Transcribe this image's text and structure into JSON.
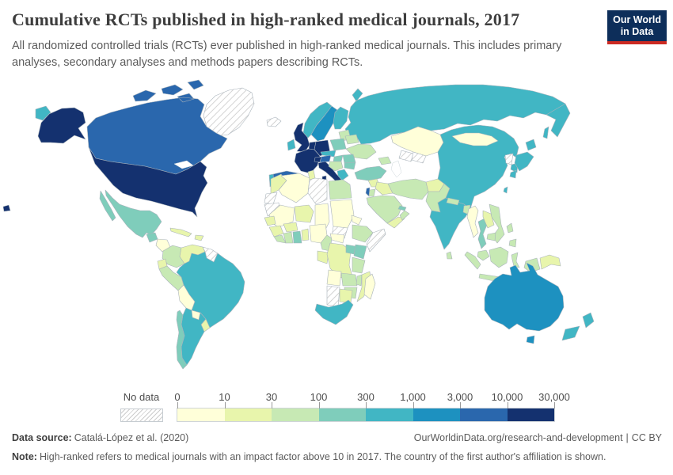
{
  "header": {
    "title": "Cumulative RCTs published in high-ranked medical journals, 2017",
    "subtitle": "All randomized controlled trials (RCTs) ever published in high-ranked medical journals. This includes primary analyses, secondary analyses and methods papers describing RCTs."
  },
  "logo": {
    "line1": "Our World",
    "line2": "in Data",
    "bg_color": "#0d2e5a",
    "red_color": "#cc2a22"
  },
  "legend": {
    "no_data_label": "No data"
  },
  "footer": {
    "source_label": "Data source:",
    "source_value": "Catalá-López et al. (2020)",
    "credit_url": "OurWorldinData.org/research-and-development",
    "separator": "|",
    "license": "CC BY",
    "note_label": "Note:",
    "note_text": "High-ranked refers to medical journals with an impact factor above 10 in 2017. The country of the first author's affiliation is shown."
  },
  "chart_data": {
    "type": "choropleth_map",
    "title": "Cumulative RCTs published in high-ranked medical journals",
    "year": 2017,
    "unit": "cumulative RCTs published",
    "legend_position": "bottom",
    "scale": "log-binned",
    "bin_edges": [
      "0",
      "10",
      "30",
      "100",
      "300",
      "1,000",
      "3,000",
      "10,000",
      "30,000"
    ],
    "bin_colors": [
      "#ffffd9",
      "#e8f5ac",
      "#c7e9b4",
      "#7fcdbb",
      "#41b6c4",
      "#1d91c0",
      "#2a67ad",
      "#14316f"
    ],
    "no_data_style": "hatched",
    "countries": [
      {
        "id": "greenland",
        "bin": "nd"
      },
      {
        "id": "canada",
        "bin": 6
      },
      {
        "id": "united-states",
        "bin": 7
      },
      {
        "id": "mexico",
        "bin": 3
      },
      {
        "id": "guatemala",
        "bin": 3
      },
      {
        "id": "honduras-nicaragua",
        "bin": 0
      },
      {
        "id": "costa-rica-panama",
        "bin": 2
      },
      {
        "id": "cuba",
        "bin": 1
      },
      {
        "id": "hispaniola",
        "bin": 1
      },
      {
        "id": "colombia",
        "bin": 2
      },
      {
        "id": "venezuela",
        "bin": 1
      },
      {
        "id": "guyanas",
        "bin": "nd"
      },
      {
        "id": "ecuador",
        "bin": 1
      },
      {
        "id": "peru",
        "bin": 2
      },
      {
        "id": "brazil",
        "bin": 4
      },
      {
        "id": "bolivia",
        "bin": 0
      },
      {
        "id": "paraguay",
        "bin": 0
      },
      {
        "id": "uruguay",
        "bin": 1
      },
      {
        "id": "argentina",
        "bin": 4
      },
      {
        "id": "chile",
        "bin": 3
      },
      {
        "id": "iceland",
        "bin": "nd"
      },
      {
        "id": "russia",
        "bin": 4
      },
      {
        "id": "norway",
        "bin": 4
      },
      {
        "id": "sweden",
        "bin": 5
      },
      {
        "id": "finland",
        "bin": 4
      },
      {
        "id": "baltics",
        "bin": 2
      },
      {
        "id": "denmark",
        "bin": 6
      },
      {
        "id": "united-kingdom",
        "bin": 7
      },
      {
        "id": "ireland",
        "bin": 4
      },
      {
        "id": "benelux",
        "bin": 7
      },
      {
        "id": "germany",
        "bin": 7
      },
      {
        "id": "france",
        "bin": 7
      },
      {
        "id": "spain",
        "bin": 6
      },
      {
        "id": "portugal",
        "bin": 4
      },
      {
        "id": "poland",
        "bin": 3
      },
      {
        "id": "czech-slovakia",
        "bin": 4
      },
      {
        "id": "switzerland",
        "bin": 7
      },
      {
        "id": "austria",
        "bin": 6
      },
      {
        "id": "italy",
        "bin": 7
      },
      {
        "id": "hungary",
        "bin": 3
      },
      {
        "id": "belarus",
        "bin": 2
      },
      {
        "id": "ukraine",
        "bin": 2
      },
      {
        "id": "romania",
        "bin": 3
      },
      {
        "id": "balkans",
        "bin": 2
      },
      {
        "id": "bulgaria",
        "bin": 3
      },
      {
        "id": "greece",
        "bin": 4
      },
      {
        "id": "kazakhstan",
        "bin": 0
      },
      {
        "id": "turkmenistan",
        "bin": "nd"
      },
      {
        "id": "uzbekistan",
        "bin": "nd"
      },
      {
        "id": "caucasus",
        "bin": 2
      },
      {
        "id": "turkey",
        "bin": 3
      },
      {
        "id": "syria",
        "bin": 1
      },
      {
        "id": "iraq",
        "bin": 1
      },
      {
        "id": "israel",
        "bin": 6
      },
      {
        "id": "jordan",
        "bin": 2
      },
      {
        "id": "saudi-arabia",
        "bin": 2
      },
      {
        "id": "yemen",
        "bin": 1
      },
      {
        "id": "oman",
        "bin": 2
      },
      {
        "id": "gulf-states",
        "bin": 3
      },
      {
        "id": "iran",
        "bin": 2
      },
      {
        "id": "afghanistan",
        "bin": 1
      },
      {
        "id": "pakistan",
        "bin": 2
      },
      {
        "id": "china",
        "bin": 4
      },
      {
        "id": "mongolia",
        "bin": 0
      },
      {
        "id": "india",
        "bin": 4
      },
      {
        "id": "nepal",
        "bin": 2
      },
      {
        "id": "bangladesh",
        "bin": 2
      },
      {
        "id": "sri-lanka",
        "bin": 2
      },
      {
        "id": "north-korea",
        "bin": "nd"
      },
      {
        "id": "south-korea",
        "bin": 4
      },
      {
        "id": "japan",
        "bin": 4
      },
      {
        "id": "taiwan",
        "bin": 4
      },
      {
        "id": "myanmar",
        "bin": 0
      },
      {
        "id": "thailand",
        "bin": 3
      },
      {
        "id": "laos",
        "bin": 1
      },
      {
        "id": "vietnam",
        "bin": 2
      },
      {
        "id": "cambodia",
        "bin": 2
      },
      {
        "id": "malaysia",
        "bin": 2
      },
      {
        "id": "indonesia",
        "bin": 2
      },
      {
        "id": "philippines",
        "bin": 2
      },
      {
        "id": "papua-new-guinea",
        "bin": 1
      },
      {
        "id": "australia",
        "bin": 5
      },
      {
        "id": "new-zealand",
        "bin": 4
      },
      {
        "id": "morocco",
        "bin": 1
      },
      {
        "id": "western-sahara",
        "bin": "nd"
      },
      {
        "id": "mauritania",
        "bin": "nd"
      },
      {
        "id": "algeria",
        "bin": 0
      },
      {
        "id": "tunisia",
        "bin": 1
      },
      {
        "id": "libya",
        "bin": "nd"
      },
      {
        "id": "egypt",
        "bin": 2
      },
      {
        "id": "mali",
        "bin": 0
      },
      {
        "id": "niger",
        "bin": 1
      },
      {
        "id": "chad",
        "bin": 0
      },
      {
        "id": "sudan",
        "bin": 0
      },
      {
        "id": "south-sudan",
        "bin": "nd"
      },
      {
        "id": "eritrea",
        "bin": 0
      },
      {
        "id": "ethiopia",
        "bin": 2
      },
      {
        "id": "somalia",
        "bin": "nd"
      },
      {
        "id": "senegal",
        "bin": 1
      },
      {
        "id": "guinea",
        "bin": 1
      },
      {
        "id": "sierra-leone-liberia",
        "bin": 2
      },
      {
        "id": "ivory-coast",
        "bin": 2
      },
      {
        "id": "ghana",
        "bin": 3
      },
      {
        "id": "burkina-faso",
        "bin": 1
      },
      {
        "id": "togo-benin",
        "bin": 1
      },
      {
        "id": "nigeria",
        "bin": 0
      },
      {
        "id": "cameroon",
        "bin": 2
      },
      {
        "id": "central-african-republic",
        "bin": 0
      },
      {
        "id": "gabon-congo",
        "bin": 1
      },
      {
        "id": "dr-congo",
        "bin": 1
      },
      {
        "id": "uganda",
        "bin": 3
      },
      {
        "id": "kenya",
        "bin": 3
      },
      {
        "id": "tanzania",
        "bin": 2
      },
      {
        "id": "angola",
        "bin": 0
      },
      {
        "id": "zambia",
        "bin": 2
      },
      {
        "id": "malawi",
        "bin": 2
      },
      {
        "id": "mozambique",
        "bin": 1
      },
      {
        "id": "zimbabwe",
        "bin": 2
      },
      {
        "id": "namibia",
        "bin": "nd"
      },
      {
        "id": "botswana",
        "bin": 1
      },
      {
        "id": "south-africa",
        "bin": 4
      },
      {
        "id": "madagascar",
        "bin": 0
      },
      {
        "id": "caspian-sea",
        "bin": "sea"
      },
      {
        "id": "great-lakes",
        "bin": "sea"
      }
    ]
  }
}
